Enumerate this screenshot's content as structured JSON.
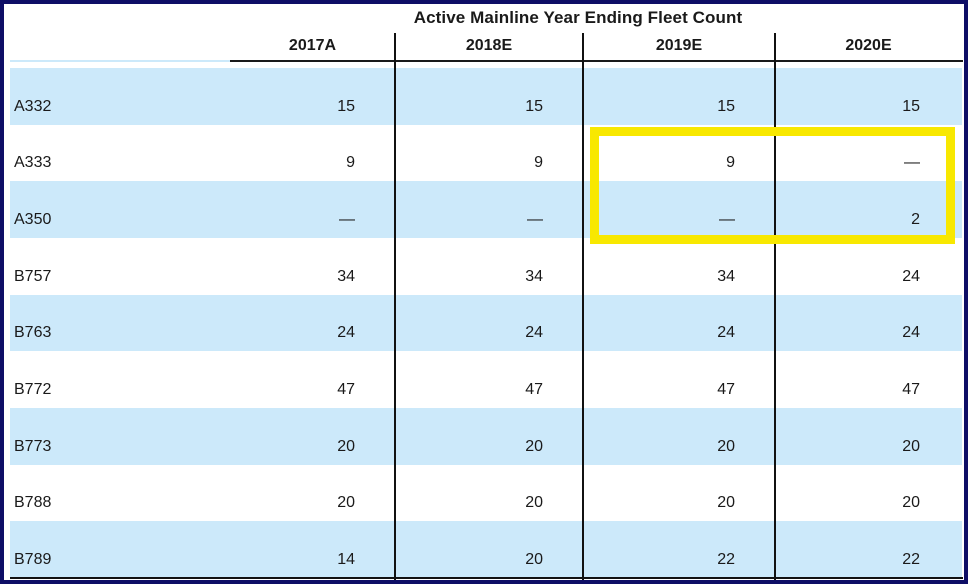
{
  "title": "Active Mainline Year Ending Fleet Count",
  "table": {
    "columns": [
      "2017A",
      "2018E",
      "2019E",
      "2020E"
    ],
    "rows": [
      {
        "label": "A332",
        "values": [
          "15",
          "15",
          "15",
          "15"
        ],
        "striped": true
      },
      {
        "label": "A333",
        "values": [
          "9",
          "9",
          "9",
          "—"
        ],
        "striped": false
      },
      {
        "label": "A350",
        "values": [
          "—",
          "—",
          "—",
          "2"
        ],
        "striped": true
      },
      {
        "label": "B757",
        "values": [
          "34",
          "34",
          "34",
          "24"
        ],
        "striped": false
      },
      {
        "label": "B763",
        "values": [
          "24",
          "24",
          "24",
          "24"
        ],
        "striped": true
      },
      {
        "label": "B772",
        "values": [
          "47",
          "47",
          "47",
          "47"
        ],
        "striped": false
      },
      {
        "label": "B773",
        "values": [
          "20",
          "20",
          "20",
          "20"
        ],
        "striped": true
      },
      {
        "label": "B788",
        "values": [
          "20",
          "20",
          "20",
          "20"
        ],
        "striped": false
      },
      {
        "label": "B789",
        "values": [
          "14",
          "20",
          "22",
          "22"
        ],
        "striped": true
      }
    ]
  },
  "highlight": {
    "description": "Yellow box around A333 and A350 rows in columns 2019E and 2020E",
    "rows": [
      "A333",
      "A350"
    ],
    "columns": [
      "2019E",
      "2020E"
    ],
    "color": "#f8e800"
  },
  "colors": {
    "row_stripe": "#cce9fa",
    "frame_navy": "#0e0e66",
    "rule_black": "#111111",
    "highlight_yellow": "#f8e800",
    "text": "#1a1a1a"
  },
  "chart_data": {
    "type": "table",
    "title": "Active Mainline Year Ending Fleet Count",
    "columns": [
      "2017A",
      "2018E",
      "2019E",
      "2020E"
    ],
    "row_labels": [
      "A332",
      "A333",
      "A350",
      "B757",
      "B763",
      "B772",
      "B773",
      "B788",
      "B789"
    ],
    "rows": [
      [
        15,
        15,
        15,
        15
      ],
      [
        9,
        9,
        9,
        null
      ],
      [
        null,
        null,
        null,
        2
      ],
      [
        34,
        34,
        34,
        24
      ],
      [
        24,
        24,
        24,
        24
      ],
      [
        47,
        47,
        47,
        47
      ],
      [
        20,
        20,
        20,
        20
      ],
      [
        20,
        20,
        20,
        20
      ],
      [
        14,
        20,
        22,
        22
      ]
    ],
    "null_display": "—",
    "notes": "Highlighted cells: A333/A350 x 2019E/2020E outlined in yellow"
  }
}
